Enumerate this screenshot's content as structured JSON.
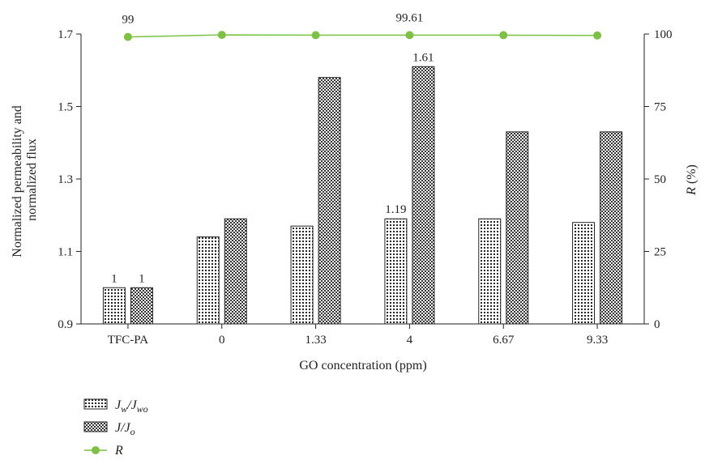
{
  "chart_data": {
    "type": "bar",
    "categories": [
      "TFC-PA",
      "0",
      "1.33",
      "4",
      "6.67",
      "9.33"
    ],
    "xlabel": "GO concentration (ppm)",
    "ylabel_lines": [
      "Normalized permeability and",
      "normalized flux"
    ],
    "y2label_italic": "R",
    "y2label_rest": " (%)",
    "ylim": [
      0.9,
      1.7
    ],
    "yticks": [
      "0.9",
      "1.1",
      "1.3",
      "1.5",
      "1.7"
    ],
    "y2lim": [
      0,
      100
    ],
    "y2ticks": [
      "0",
      "25",
      "50",
      "75",
      "100"
    ],
    "grid": false,
    "legend_position": "bottom-left",
    "series": [
      {
        "key": "jw",
        "name_main": "J",
        "name_sub1": "w",
        "name_mid": "/J",
        "name_sub2": "wo",
        "axis": "left",
        "pattern": "dots",
        "values": [
          1.0,
          1.14,
          1.17,
          1.19,
          1.19,
          1.18
        ],
        "labels": [
          "1",
          "",
          "",
          "1.19",
          "",
          ""
        ]
      },
      {
        "key": "j",
        "name_main": "J",
        "name_sub1": "",
        "name_mid": "/J",
        "name_sub2": "o",
        "axis": "left",
        "pattern": "crosshatch",
        "values": [
          1.0,
          1.19,
          1.58,
          1.61,
          1.43,
          1.43
        ],
        "labels": [
          "1",
          "",
          "",
          "1.61",
          "",
          ""
        ]
      },
      {
        "key": "r",
        "name_main": "R",
        "axis": "right",
        "type": "line",
        "color": "#7cc242",
        "values": [
          99,
          99.7,
          99.6,
          99.61,
          99.6,
          99.5
        ],
        "labels": [
          "99",
          "",
          "",
          "99.61",
          "",
          ""
        ]
      }
    ]
  }
}
